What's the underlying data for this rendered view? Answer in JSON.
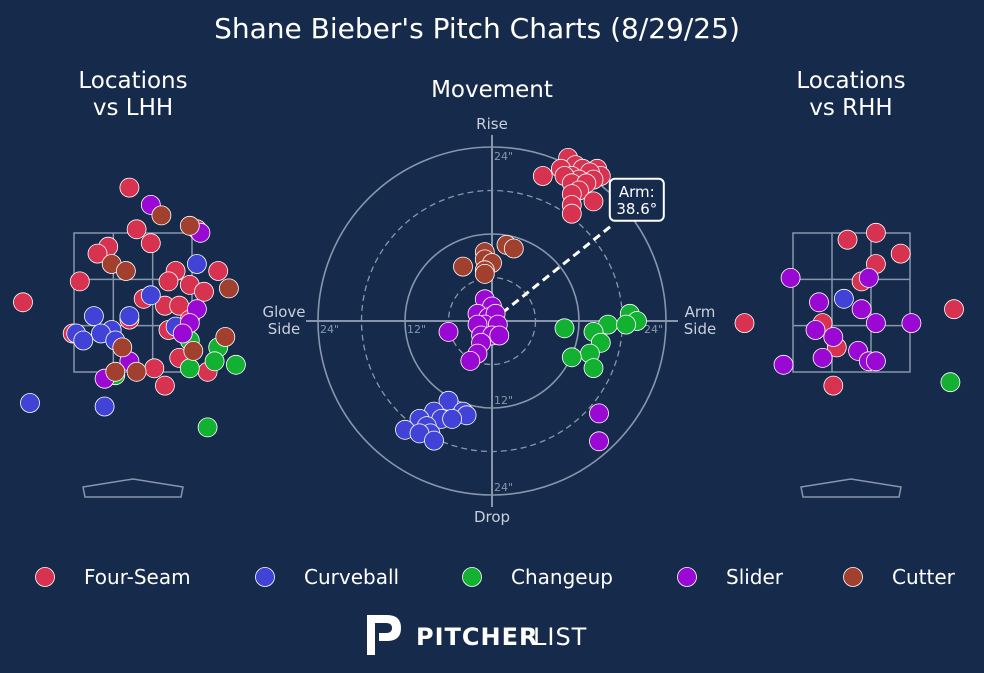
{
  "title": "Shane Bieber's Pitch Charts (8/29/25)",
  "brand": {
    "bold": "PITCHER",
    "light": "LIST"
  },
  "colors": {
    "background": "#162a4b",
    "grid": "#8896ad",
    "text": "#ffffff",
    "muted": "#c9d0dc",
    "Four-Seam": "#d7324f",
    "Curveball": "#4043d6",
    "Changeup": "#13b131",
    "Slider": "#9a09d3",
    "Cutter": "#a2402f"
  },
  "legend": [
    "Four-Seam",
    "Curveball",
    "Changeup",
    "Slider",
    "Cutter"
  ],
  "chart_data": [
    {
      "type": "scatter",
      "title": "Locations\nvs LHH",
      "points": [
        {
          "pitch": "Four-Seam",
          "x": -0.05,
          "y": 4.15
        },
        {
          "pitch": "Four-Seam",
          "x": 0.05,
          "y": 3.55
        },
        {
          "pitch": "Four-Seam",
          "x": 0.25,
          "y": 3.35
        },
        {
          "pitch": "Four-Seam",
          "x": -0.35,
          "y": 3.3
        },
        {
          "pitch": "Four-Seam",
          "x": -0.5,
          "y": 3.2
        },
        {
          "pitch": "Four-Seam",
          "x": 0.9,
          "y": 3.55
        },
        {
          "pitch": "Four-Seam",
          "x": 1.2,
          "y": 2.95
        },
        {
          "pitch": "Four-Seam",
          "x": 0.6,
          "y": 2.95
        },
        {
          "pitch": "Four-Seam",
          "x": 0.5,
          "y": 2.8
        },
        {
          "pitch": "Four-Seam",
          "x": -0.75,
          "y": 2.8
        },
        {
          "pitch": "Four-Seam",
          "x": 0.8,
          "y": 2.75
        },
        {
          "pitch": "Four-Seam",
          "x": 1.0,
          "y": 2.65
        },
        {
          "pitch": "Four-Seam",
          "x": 0.15,
          "y": 2.55
        },
        {
          "pitch": "Four-Seam",
          "x": 0.45,
          "y": 2.45
        },
        {
          "pitch": "Four-Seam",
          "x": 0.65,
          "y": 2.45
        },
        {
          "pitch": "Four-Seam",
          "x": -1.55,
          "y": 2.5
        },
        {
          "pitch": "Four-Seam",
          "x": 0.8,
          "y": 2.25
        },
        {
          "pitch": "Four-Seam",
          "x": -0.05,
          "y": 2.25
        },
        {
          "pitch": "Four-Seam",
          "x": 0.5,
          "y": 2.1
        },
        {
          "pitch": "Four-Seam",
          "x": -0.85,
          "y": 2.05
        },
        {
          "pitch": "Four-Seam",
          "x": 0.65,
          "y": 1.7
        },
        {
          "pitch": "Four-Seam",
          "x": 0.3,
          "y": 1.55
        },
        {
          "pitch": "Four-Seam",
          "x": 1.05,
          "y": 1.5
        },
        {
          "pitch": "Four-Seam",
          "x": 0.45,
          "y": 1.3
        },
        {
          "pitch": "Curveball",
          "x": 0.9,
          "y": 3.05
        },
        {
          "pitch": "Curveball",
          "x": 0.25,
          "y": 2.6
        },
        {
          "pitch": "Curveball",
          "x": -0.55,
          "y": 2.3
        },
        {
          "pitch": "Curveball",
          "x": -0.05,
          "y": 2.3
        },
        {
          "pitch": "Curveball",
          "x": -0.3,
          "y": 2.1
        },
        {
          "pitch": "Curveball",
          "x": 0.6,
          "y": 2.15
        },
        {
          "pitch": "Curveball",
          "x": -0.8,
          "y": 2.05
        },
        {
          "pitch": "Curveball",
          "x": -0.45,
          "y": 2.05
        },
        {
          "pitch": "Curveball",
          "x": -0.7,
          "y": 1.95
        },
        {
          "pitch": "Curveball",
          "x": -0.25,
          "y": 1.95
        },
        {
          "pitch": "Curveball",
          "x": -1.45,
          "y": 1.05
        },
        {
          "pitch": "Curveball",
          "x": -0.4,
          "y": 1.0
        },
        {
          "pitch": "Changeup",
          "x": 0.8,
          "y": 1.95
        },
        {
          "pitch": "Changeup",
          "x": 1.2,
          "y": 1.85
        },
        {
          "pitch": "Changeup",
          "x": 1.15,
          "y": 1.65
        },
        {
          "pitch": "Changeup",
          "x": 1.45,
          "y": 1.6
        },
        {
          "pitch": "Changeup",
          "x": 0.8,
          "y": 1.55
        },
        {
          "pitch": "Changeup",
          "x": -0.25,
          "y": 1.45
        },
        {
          "pitch": "Changeup",
          "x": 1.05,
          "y": 0.7
        },
        {
          "pitch": "Slider",
          "x": 0.25,
          "y": 3.9
        },
        {
          "pitch": "Slider",
          "x": 0.95,
          "y": 3.5
        },
        {
          "pitch": "Slider",
          "x": 0.9,
          "y": 2.4
        },
        {
          "pitch": "Slider",
          "x": 0.8,
          "y": 2.2
        },
        {
          "pitch": "Slider",
          "x": 0.7,
          "y": 2.05
        },
        {
          "pitch": "Slider",
          "x": -0.05,
          "y": 1.65
        },
        {
          "pitch": "Slider",
          "x": -0.4,
          "y": 1.4
        },
        {
          "pitch": "Cutter",
          "x": 0.4,
          "y": 3.75
        },
        {
          "pitch": "Cutter",
          "x": 0.8,
          "y": 3.6
        },
        {
          "pitch": "Cutter",
          "x": -0.3,
          "y": 3.05
        },
        {
          "pitch": "Cutter",
          "x": -0.1,
          "y": 2.95
        },
        {
          "pitch": "Cutter",
          "x": 1.35,
          "y": 2.7
        },
        {
          "pitch": "Cutter",
          "x": 1.3,
          "y": 2.0
        },
        {
          "pitch": "Cutter",
          "x": -0.15,
          "y": 1.85
        },
        {
          "pitch": "Cutter",
          "x": 0.85,
          "y": 1.8
        },
        {
          "pitch": "Cutter",
          "x": -0.25,
          "y": 1.5
        },
        {
          "pitch": "Cutter",
          "x": 0.05,
          "y": 1.5
        }
      ]
    },
    {
      "type": "scatter",
      "title": "Movement",
      "polar": true,
      "labels": {
        "top": "Rise",
        "bottom": "Drop",
        "left": "Glove\nSide",
        "right": "Arm\nSide"
      },
      "rings": [
        "12\"",
        "24\""
      ],
      "arm_angle": {
        "label": "Arm:",
        "value": "38.6°",
        "degrees": 38.6
      },
      "points": [
        {
          "pitch": "Four-Seam",
          "x": 10.5,
          "y": 22.5
        },
        {
          "pitch": "Four-Seam",
          "x": 11.5,
          "y": 21.5
        },
        {
          "pitch": "Four-Seam",
          "x": 9.5,
          "y": 21
        },
        {
          "pitch": "Four-Seam",
          "x": 12.5,
          "y": 21
        },
        {
          "pitch": "Four-Seam",
          "x": 14.5,
          "y": 21
        },
        {
          "pitch": "Four-Seam",
          "x": 15,
          "y": 20
        },
        {
          "pitch": "Four-Seam",
          "x": 13.5,
          "y": 20.5
        },
        {
          "pitch": "Four-Seam",
          "x": 7,
          "y": 20
        },
        {
          "pitch": "Four-Seam",
          "x": 11,
          "y": 20
        },
        {
          "pitch": "Four-Seam",
          "x": 12,
          "y": 19.5
        },
        {
          "pitch": "Four-Seam",
          "x": 14,
          "y": 19.5
        },
        {
          "pitch": "Four-Seam",
          "x": 10,
          "y": 20
        },
        {
          "pitch": "Four-Seam",
          "x": 11,
          "y": 19
        },
        {
          "pitch": "Four-Seam",
          "x": 13,
          "y": 19
        },
        {
          "pitch": "Four-Seam",
          "x": 12,
          "y": 18
        },
        {
          "pitch": "Four-Seam",
          "x": 11,
          "y": 17.5
        },
        {
          "pitch": "Four-Seam",
          "x": 14,
          "y": 16.5
        },
        {
          "pitch": "Four-Seam",
          "x": 11,
          "y": 16
        },
        {
          "pitch": "Four-Seam",
          "x": 11,
          "y": 14.8
        },
        {
          "pitch": "Curveball",
          "x": -6,
          "y": -11
        },
        {
          "pitch": "Curveball",
          "x": -4,
          "y": -12.5
        },
        {
          "pitch": "Curveball",
          "x": -8,
          "y": -12.5
        },
        {
          "pitch": "Curveball",
          "x": -3.5,
          "y": -13
        },
        {
          "pitch": "Curveball",
          "x": -10,
          "y": -13.5
        },
        {
          "pitch": "Curveball",
          "x": -7,
          "y": -13.5
        },
        {
          "pitch": "Curveball",
          "x": -5.5,
          "y": -13.5
        },
        {
          "pitch": "Curveball",
          "x": -9,
          "y": -14.5
        },
        {
          "pitch": "Curveball",
          "x": -12,
          "y": -15
        },
        {
          "pitch": "Curveball",
          "x": -8.5,
          "y": -15.5
        },
        {
          "pitch": "Curveball",
          "x": -10,
          "y": -15.5
        },
        {
          "pitch": "Curveball",
          "x": -8,
          "y": -16.5
        },
        {
          "pitch": "Changeup",
          "x": 19,
          "y": 1
        },
        {
          "pitch": "Changeup",
          "x": 20,
          "y": 0
        },
        {
          "pitch": "Changeup",
          "x": 16,
          "y": -0.5
        },
        {
          "pitch": "Changeup",
          "x": 18.5,
          "y": -0.5
        },
        {
          "pitch": "Changeup",
          "x": 10,
          "y": -1
        },
        {
          "pitch": "Changeup",
          "x": 14,
          "y": -1.5
        },
        {
          "pitch": "Changeup",
          "x": 15,
          "y": -3
        },
        {
          "pitch": "Changeup",
          "x": 13.5,
          "y": -4.5
        },
        {
          "pitch": "Changeup",
          "x": 11,
          "y": -5
        },
        {
          "pitch": "Changeup",
          "x": 14,
          "y": -6.5
        },
        {
          "pitch": "Slider",
          "x": -1,
          "y": 3
        },
        {
          "pitch": "Slider",
          "x": 0,
          "y": 2
        },
        {
          "pitch": "Slider",
          "x": -2,
          "y": 1
        },
        {
          "pitch": "Slider",
          "x": -0.5,
          "y": 0.5
        },
        {
          "pitch": "Slider",
          "x": 0.5,
          "y": 1
        },
        {
          "pitch": "Slider",
          "x": -1,
          "y": -0.5
        },
        {
          "pitch": "Slider",
          "x": 0.8,
          "y": -0.5
        },
        {
          "pitch": "Slider",
          "x": -2,
          "y": -0.5
        },
        {
          "pitch": "Slider",
          "x": -6,
          "y": -1.5
        },
        {
          "pitch": "Slider",
          "x": -1.5,
          "y": -2
        },
        {
          "pitch": "Slider",
          "x": 0,
          "y": -2
        },
        {
          "pitch": "Slider",
          "x": 1,
          "y": -2
        },
        {
          "pitch": "Slider",
          "x": -1.5,
          "y": -3
        },
        {
          "pitch": "Slider",
          "x": -2,
          "y": -4.5
        },
        {
          "pitch": "Slider",
          "x": -3,
          "y": -5.5
        },
        {
          "pitch": "Cutter",
          "x": 2,
          "y": 10.5
        },
        {
          "pitch": "Cutter",
          "x": 3,
          "y": 10
        },
        {
          "pitch": "Cutter",
          "x": -1,
          "y": 9.5
        },
        {
          "pitch": "Cutter",
          "x": -1,
          "y": 8.5
        },
        {
          "pitch": "Cutter",
          "x": 0,
          "y": 8
        },
        {
          "pitch": "Cutter",
          "x": -4,
          "y": 7.5
        },
        {
          "pitch": "Cutter",
          "x": -1,
          "y": 7
        },
        {
          "pitch": "Cutter",
          "x": -1,
          "y": 6.5
        }
      ]
    },
    {
      "type": "scatter",
      "title": "Locations\nvs RHH",
      "points": [
        {
          "pitch": "Four-Seam",
          "x": 0.35,
          "y": 3.5
        },
        {
          "pitch": "Four-Seam",
          "x": 0.7,
          "y": 3.2
        },
        {
          "pitch": "Four-Seam",
          "x": -0.05,
          "y": 3.4
        },
        {
          "pitch": "Four-Seam",
          "x": 0.35,
          "y": 3.05
        },
        {
          "pitch": "Four-Seam",
          "x": 0.15,
          "y": 2.8
        },
        {
          "pitch": "Four-Seam",
          "x": 1.45,
          "y": 2.4
        },
        {
          "pitch": "Four-Seam",
          "x": -1.5,
          "y": 2.2
        },
        {
          "pitch": "Four-Seam",
          "x": -0.4,
          "y": 2.2
        },
        {
          "pitch": "Four-Seam",
          "x": -0.2,
          "y": 1.85
        },
        {
          "pitch": "Four-Seam",
          "x": -0.25,
          "y": 1.3
        },
        {
          "pitch": "Curveball",
          "x": -0.1,
          "y": 2.55
        },
        {
          "pitch": "Changeup",
          "x": 1.4,
          "y": 1.35
        },
        {
          "pitch": "Slider",
          "x": -0.85,
          "y": 2.85
        },
        {
          "pitch": "Slider",
          "x": 0.25,
          "y": 2.85
        },
        {
          "pitch": "Slider",
          "x": -0.45,
          "y": 2.5
        },
        {
          "pitch": "Slider",
          "x": 0.15,
          "y": 2.4
        },
        {
          "pitch": "Slider",
          "x": -0.5,
          "y": 2.1
        },
        {
          "pitch": "Slider",
          "x": -0.25,
          "y": 2.0
        },
        {
          "pitch": "Slider",
          "x": 0.35,
          "y": 2.2
        },
        {
          "pitch": "Slider",
          "x": 0.85,
          "y": 2.2
        },
        {
          "pitch": "Slider",
          "x": -0.95,
          "y": 1.6
        },
        {
          "pitch": "Slider",
          "x": -0.4,
          "y": 1.7
        },
        {
          "pitch": "Slider",
          "x": 0.1,
          "y": 1.8
        },
        {
          "pitch": "Slider",
          "x": 0.25,
          "y": 1.65
        },
        {
          "pitch": "Slider",
          "x": 0.35,
          "y": 1.65
        },
        {
          "pitch": "Slider",
          "x": -3.55,
          "y": 0.9
        },
        {
          "pitch": "Slider",
          "x": -3.55,
          "y": 0.5
        }
      ]
    }
  ]
}
